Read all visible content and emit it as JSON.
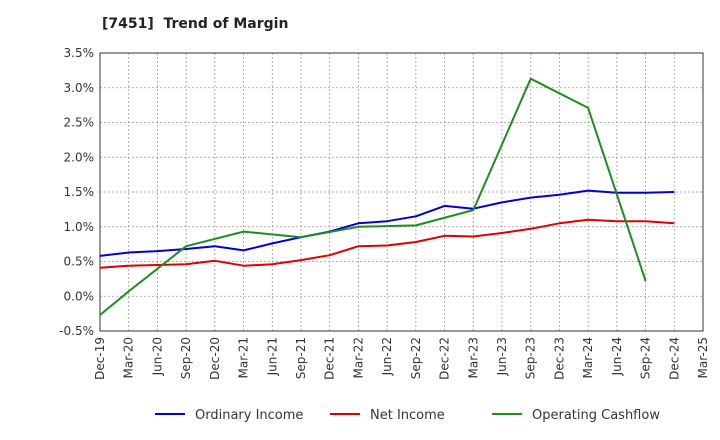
{
  "chart_data": {
    "type": "line",
    "title": "[7451]  Trend of Margin",
    "xlabel": "",
    "ylabel": "",
    "ylim": [
      -0.5,
      3.5
    ],
    "ytick_step": 0.5,
    "ytick_labels": [
      "-0.5%",
      "0.0%",
      "0.5%",
      "1.0%",
      "1.5%",
      "2.0%",
      "2.5%",
      "3.0%",
      "3.5%"
    ],
    "grid": true,
    "legend_position": "bottom",
    "categories": [
      "Dec-19",
      "Mar-20",
      "Jun-20",
      "Sep-20",
      "Dec-20",
      "Mar-21",
      "Jun-21",
      "Sep-21",
      "Dec-21",
      "Mar-22",
      "Jun-22",
      "Sep-22",
      "Dec-22",
      "Mar-23",
      "Jun-23",
      "Sep-23",
      "Dec-23",
      "Mar-24",
      "Jun-24",
      "Sep-24",
      "Dec-24",
      "Mar-25"
    ],
    "series": [
      {
        "name": "Ordinary Income",
        "color": "#0000cc",
        "values": [
          0.58,
          0.63,
          0.65,
          0.68,
          0.72,
          0.66,
          0.76,
          0.85,
          0.93,
          1.05,
          1.08,
          1.15,
          1.3,
          1.26,
          1.35,
          1.42,
          1.46,
          1.52,
          1.49,
          1.49,
          1.5,
          null
        ]
      },
      {
        "name": "Net Income",
        "color": "#dd0000",
        "values": [
          0.41,
          0.44,
          0.45,
          0.46,
          0.51,
          0.44,
          0.46,
          0.52,
          0.59,
          0.72,
          0.73,
          0.78,
          0.87,
          0.86,
          0.91,
          0.97,
          1.05,
          1.1,
          1.08,
          1.08,
          1.05,
          null
        ]
      },
      {
        "name": "Operating Cashflow",
        "color": "#228b22",
        "values": [
          -0.27,
          0.07,
          null,
          0.72,
          null,
          0.93,
          null,
          0.85,
          null,
          1.0,
          null,
          1.02,
          null,
          1.24,
          null,
          3.13,
          null,
          2.71,
          null,
          0.22,
          null,
          null
        ]
      }
    ]
  }
}
